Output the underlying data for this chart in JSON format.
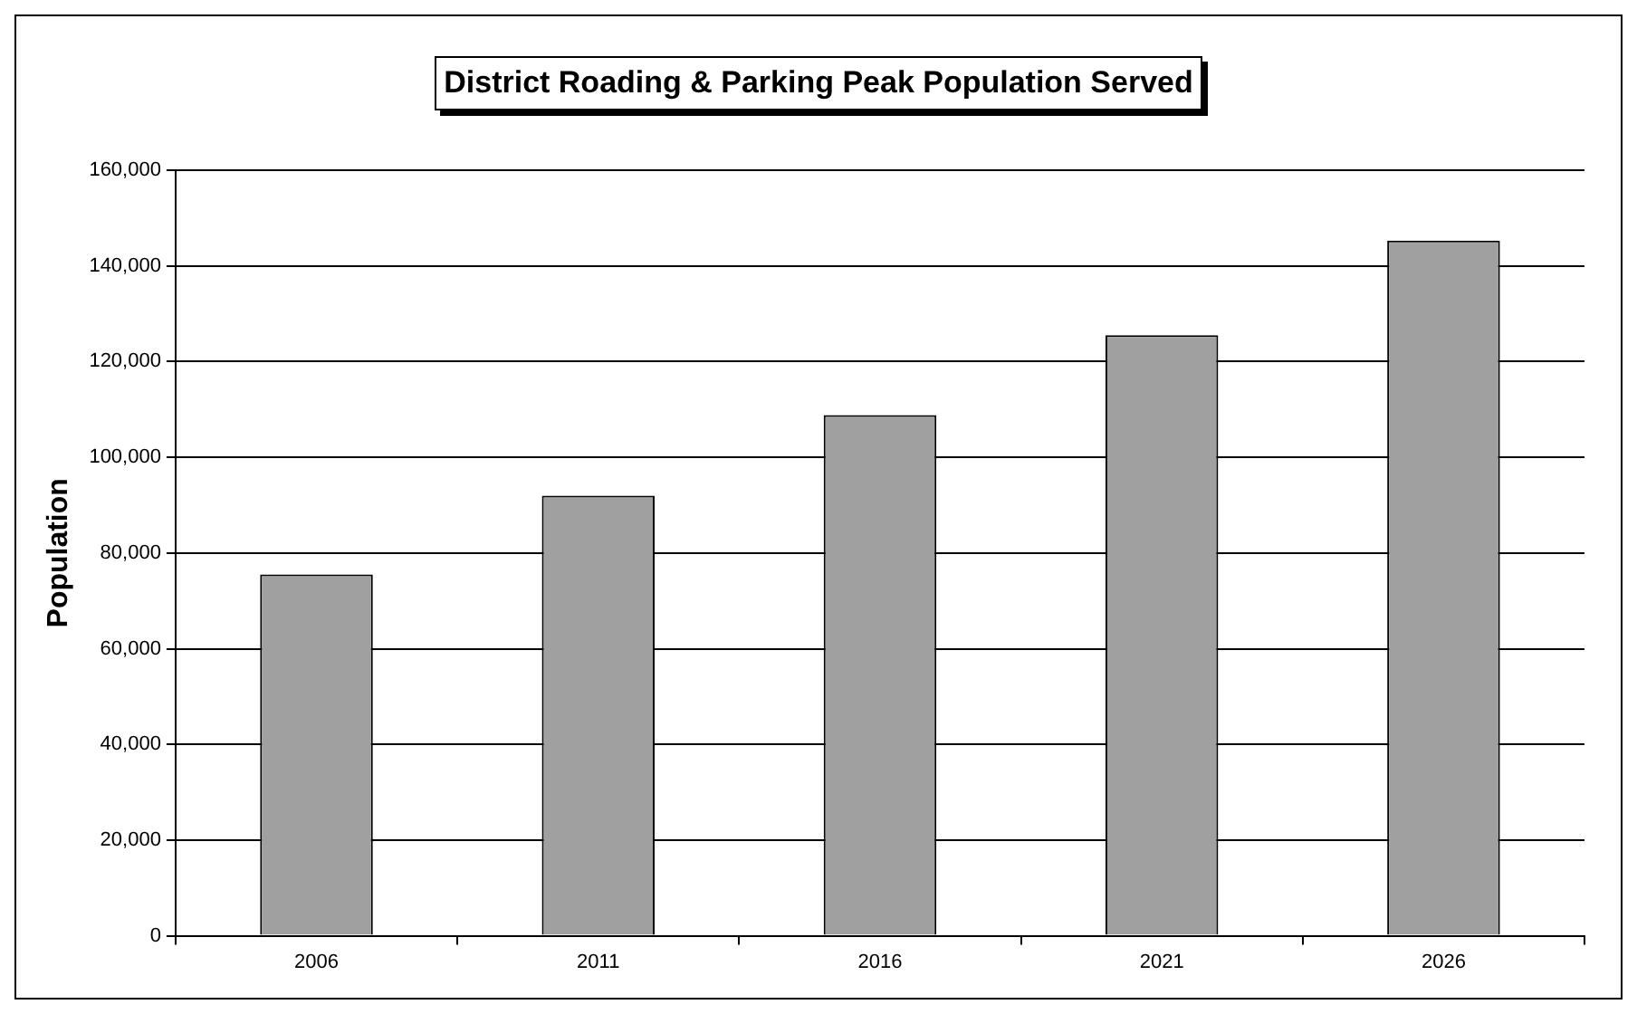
{
  "chart_data": {
    "type": "bar",
    "title": "District Roading & Parking Peak Population Served",
    "ylabel": "Population",
    "categories": [
      "2006",
      "2011",
      "2016",
      "2021",
      "2026"
    ],
    "values": [
      75500,
      92000,
      108800,
      125500,
      145300
    ],
    "color": "#a0a0a0",
    "ylim": [
      0,
      160000
    ],
    "yticks": [
      0,
      {
        "value": 20000,
        "label": "20,000"
      },
      {
        "value": 40000,
        "label": "40,000"
      },
      {
        "value": 60000,
        "label": "60,000"
      },
      {
        "value": 80000,
        "label": "80,000"
      },
      {
        "value": 100000,
        "label": "100,000"
      },
      {
        "value": 120000,
        "label": "120,000"
      },
      {
        "value": 140000,
        "label": "140,000"
      },
      {
        "value": 160000,
        "label": "160,000"
      }
    ],
    "grid": "y",
    "legend": false
  }
}
